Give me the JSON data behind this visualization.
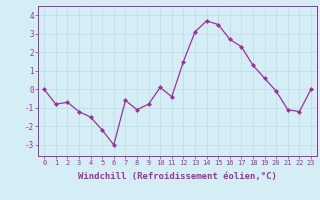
{
  "x": [
    0,
    1,
    2,
    3,
    4,
    5,
    6,
    7,
    8,
    9,
    10,
    11,
    12,
    13,
    14,
    15,
    16,
    17,
    18,
    19,
    20,
    21,
    22,
    23
  ],
  "y": [
    0,
    -0.8,
    -0.7,
    -1.2,
    -1.5,
    -2.2,
    -3.0,
    -0.6,
    -1.1,
    -0.8,
    0.1,
    -0.4,
    1.5,
    3.1,
    3.7,
    3.5,
    2.7,
    2.3,
    1.3,
    0.6,
    -0.1,
    -1.1,
    -1.2,
    0.0
  ],
  "line_color": "#993399",
  "marker": "D",
  "marker_size": 2.0,
  "line_width": 0.9,
  "xlabel": "Windchill (Refroidissement éolien,°C)",
  "xlabel_fontsize": 6.5,
  "xtick_labels": [
    "0",
    "1",
    "2",
    "3",
    "4",
    "5",
    "6",
    "7",
    "8",
    "9",
    "10",
    "11",
    "12",
    "13",
    "14",
    "15",
    "16",
    "17",
    "18",
    "19",
    "20",
    "21",
    "22",
    "23"
  ],
  "ytick_values": [
    -3,
    -2,
    -1,
    0,
    1,
    2,
    3,
    4
  ],
  "ylim": [
    -3.6,
    4.5
  ],
  "xlim": [
    -0.5,
    23.5
  ],
  "background_color": "#d5eef5",
  "grid_color": "#c0dde8",
  "tick_color": "#993399",
  "tick_label_color": "#993399",
  "spine_color": "#993399",
  "xtick_fontsize": 5.0,
  "ytick_fontsize": 5.5
}
